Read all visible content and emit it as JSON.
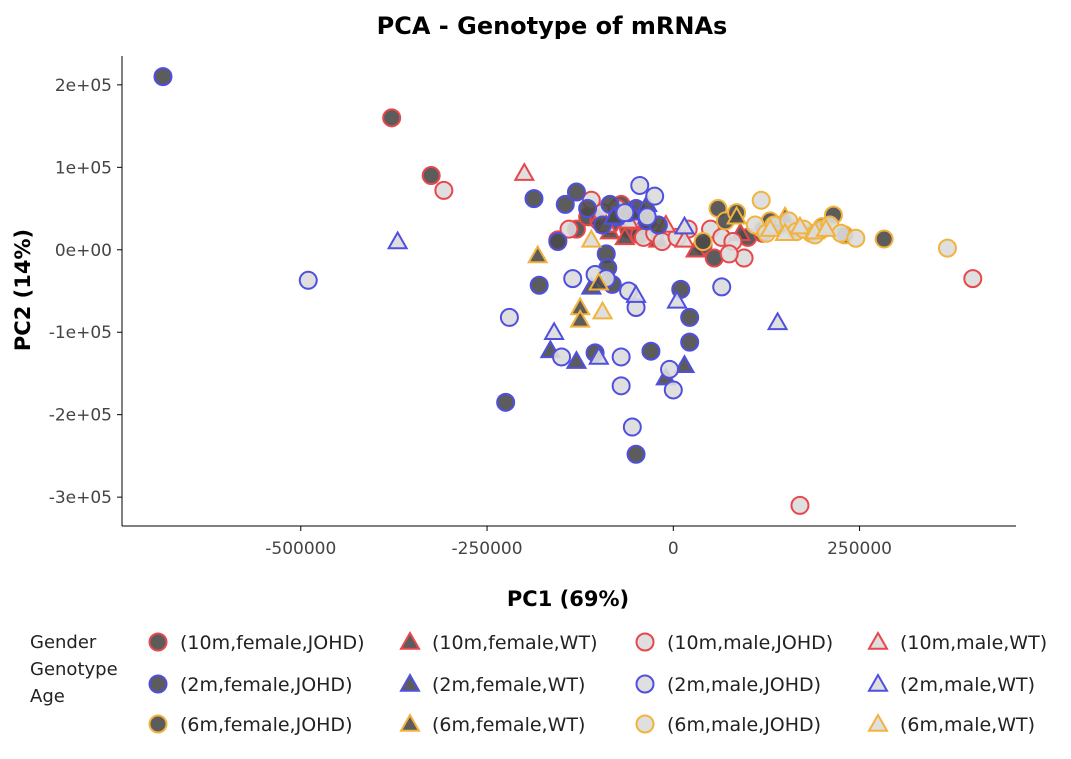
{
  "chart_data": {
    "type": "scatter",
    "title": "PCA - Genotype of mRNAs",
    "xlabel": "PC1 (69%)",
    "ylabel": "PC2 (14%)",
    "xlim": [
      -740000,
      460000
    ],
    "ylim": [
      -335000,
      235000
    ],
    "x_ticks": [
      -500000,
      -250000,
      0,
      250000
    ],
    "x_tick_labels": [
      "-500000",
      "-250000",
      "0",
      "250000"
    ],
    "y_ticks": [
      200000,
      100000,
      0,
      -100000,
      -200000,
      -300000
    ],
    "y_tick_labels": [
      "2e+05",
      "1e+05",
      "0e+00",
      "-1e+05",
      "-2e+05",
      "-3e+05"
    ],
    "grid": false,
    "legend_position": "bottom",
    "legend_title": [
      "Gender",
      "Genotype",
      "Age"
    ],
    "colors": {
      "10m": "#e8474b",
      "2m": "#4f4fe0",
      "6m": "#f2b33d",
      "female_fill": "#4a4a4a",
      "male_fill": "#dcdcdc"
    },
    "series": [
      {
        "name": "(10m,female,JOHD)",
        "age": "10m",
        "gender": "female",
        "shape": "circle",
        "points": [
          [
            -378000,
            160000
          ],
          [
            -325000,
            90000
          ],
          [
            -155000,
            12000
          ],
          [
            -130000,
            25000
          ],
          [
            -115000,
            40000
          ],
          [
            -100000,
            35000
          ],
          [
            -85000,
            30000
          ],
          [
            -70000,
            55000
          ],
          [
            -60000,
            25000
          ],
          [
            -45000,
            18000
          ],
          [
            -30000,
            22000
          ],
          [
            40000,
            5000
          ],
          [
            55000,
            -10000
          ],
          [
            100000,
            15000
          ],
          [
            120000,
            20000
          ]
        ]
      },
      {
        "name": "(10m,female,WT)",
        "age": "10m",
        "gender": "female",
        "shape": "triangle",
        "points": [
          [
            -100000,
            38000
          ],
          [
            -85000,
            22000
          ],
          [
            -65000,
            15000
          ],
          [
            -40000,
            25000
          ],
          [
            -20000,
            12000
          ],
          [
            30000,
            0
          ],
          [
            90000,
            20000
          ]
        ]
      },
      {
        "name": "(10m,male,JOHD)",
        "age": "10m",
        "gender": "male",
        "shape": "circle",
        "points": [
          [
            -308000,
            72000
          ],
          [
            -140000,
            25000
          ],
          [
            -110000,
            60000
          ],
          [
            -95000,
            45000
          ],
          [
            -75000,
            50000
          ],
          [
            -55000,
            35000
          ],
          [
            -40000,
            15000
          ],
          [
            -25000,
            20000
          ],
          [
            -15000,
            10000
          ],
          [
            5000,
            15000
          ],
          [
            20000,
            25000
          ],
          [
            50000,
            25000
          ],
          [
            65000,
            15000
          ],
          [
            80000,
            10000
          ],
          [
            95000,
            -10000
          ],
          [
            75000,
            -5000
          ],
          [
            170000,
            -310000
          ],
          [
            402000,
            -35000
          ]
        ]
      },
      {
        "name": "(10m,male,WT)",
        "age": "10m",
        "gender": "male",
        "shape": "triangle",
        "points": [
          [
            -200000,
            93000
          ],
          [
            -90000,
            30000
          ],
          [
            -60000,
            35000
          ],
          [
            -35000,
            40000
          ],
          [
            -10000,
            30000
          ],
          [
            15000,
            12000
          ]
        ]
      },
      {
        "name": "(2m,female,JOHD)",
        "age": "2m",
        "gender": "female",
        "shape": "circle",
        "points": [
          [
            -685000,
            210000
          ],
          [
            -187000,
            62000
          ],
          [
            -155000,
            10000
          ],
          [
            -145000,
            55000
          ],
          [
            -130000,
            70000
          ],
          [
            -115000,
            50000
          ],
          [
            -95000,
            30000
          ],
          [
            -85000,
            55000
          ],
          [
            -75000,
            40000
          ],
          [
            -60000,
            45000
          ],
          [
            -50000,
            50000
          ],
          [
            -35000,
            35000
          ],
          [
            -20000,
            30000
          ],
          [
            -90000,
            -5000
          ],
          [
            -88000,
            -22000
          ],
          [
            -82000,
            -42000
          ],
          [
            -180000,
            -43000
          ],
          [
            -105000,
            -125000
          ],
          [
            -30000,
            -123000
          ],
          [
            10000,
            -48000
          ],
          [
            22000,
            -82000
          ],
          [
            22000,
            -112000
          ],
          [
            -225000,
            -185000
          ],
          [
            -50000,
            -248000
          ]
        ]
      },
      {
        "name": "(2m,female,WT)",
        "age": "2m",
        "gender": "female",
        "shape": "triangle",
        "points": [
          [
            -165000,
            -122000
          ],
          [
            -130000,
            -135000
          ],
          [
            -110000,
            -45000
          ],
          [
            -80000,
            40000
          ],
          [
            -55000,
            45000
          ],
          [
            -35000,
            55000
          ],
          [
            -10000,
            -155000
          ],
          [
            15000,
            -140000
          ]
        ]
      },
      {
        "name": "(2m,male,JOHD)",
        "age": "2m",
        "gender": "male",
        "shape": "circle",
        "points": [
          [
            -490000,
            -37000
          ],
          [
            -220000,
            -82000
          ],
          [
            -150000,
            -130000
          ],
          [
            -135000,
            -35000
          ],
          [
            -105000,
            -30000
          ],
          [
            -90000,
            -35000
          ],
          [
            -70000,
            -130000
          ],
          [
            -70000,
            -165000
          ],
          [
            -65000,
            45000
          ],
          [
            -60000,
            -50000
          ],
          [
            -55000,
            -215000
          ],
          [
            -50000,
            -70000
          ],
          [
            -45000,
            78000
          ],
          [
            -35000,
            40000
          ],
          [
            -25000,
            65000
          ],
          [
            -5000,
            -145000
          ],
          [
            0,
            -170000
          ],
          [
            65000,
            -45000
          ]
        ]
      },
      {
        "name": "(2m,male,WT)",
        "age": "2m",
        "gender": "male",
        "shape": "triangle",
        "points": [
          [
            -370000,
            10000
          ],
          [
            -160000,
            -100000
          ],
          [
            -100000,
            -130000
          ],
          [
            -50000,
            -55000
          ],
          [
            5000,
            -62000
          ],
          [
            15000,
            28000
          ],
          [
            140000,
            -88000
          ]
        ]
      },
      {
        "name": "(6m,female,JOHD)",
        "age": "6m",
        "gender": "female",
        "shape": "circle",
        "points": [
          [
            40000,
            10000
          ],
          [
            60000,
            50000
          ],
          [
            70000,
            35000
          ],
          [
            85000,
            45000
          ],
          [
            120000,
            25000
          ],
          [
            130000,
            35000
          ],
          [
            145000,
            30000
          ],
          [
            165000,
            25000
          ],
          [
            185000,
            20000
          ],
          [
            200000,
            28000
          ],
          [
            215000,
            42000
          ],
          [
            230000,
            18000
          ],
          [
            283000,
            13000
          ]
        ]
      },
      {
        "name": "(6m,female,WT)",
        "age": "6m",
        "gender": "female",
        "shape": "triangle",
        "points": [
          [
            -182000,
            -7000
          ],
          [
            -125000,
            -70000
          ],
          [
            -125000,
            -85000
          ],
          [
            -100000,
            -40000
          ],
          [
            85000,
            40000
          ],
          [
            150000,
            40000
          ]
        ]
      },
      {
        "name": "(6m,male,JOHD)",
        "age": "6m",
        "gender": "male",
        "shape": "circle",
        "points": [
          [
            110000,
            30000
          ],
          [
            118000,
            60000
          ],
          [
            125000,
            20000
          ],
          [
            135000,
            30000
          ],
          [
            155000,
            35000
          ],
          [
            165000,
            22000
          ],
          [
            175000,
            25000
          ],
          [
            190000,
            18000
          ],
          [
            200000,
            25000
          ],
          [
            210000,
            30000
          ],
          [
            225000,
            20000
          ],
          [
            245000,
            14000
          ],
          [
            368000,
            2000
          ]
        ]
      },
      {
        "name": "(6m,male,WT)",
        "age": "6m",
        "gender": "male",
        "shape": "triangle",
        "points": [
          [
            -110000,
            12000
          ],
          [
            -95000,
            -75000
          ],
          [
            130000,
            25000
          ],
          [
            150000,
            20000
          ],
          [
            170000,
            28000
          ],
          [
            190000,
            22000
          ],
          [
            205000,
            25000
          ]
        ]
      }
    ]
  }
}
